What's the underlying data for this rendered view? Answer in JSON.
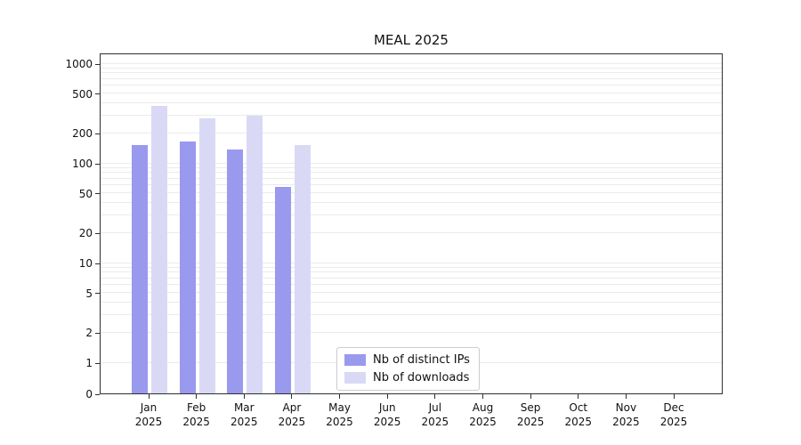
{
  "chart_data": {
    "type": "bar",
    "title": "MEAL 2025",
    "categories": [
      "Jan",
      "Feb",
      "Mar",
      "Apr",
      "May",
      "Jun",
      "Jul",
      "Aug",
      "Sep",
      "Oct",
      "Nov",
      "Dec"
    ],
    "year_label": "2025",
    "series": [
      {
        "name": "Nb of distinct IPs",
        "color": "#9999ee",
        "values": [
          150,
          165,
          135,
          58,
          0,
          0,
          0,
          0,
          0,
          0,
          0,
          0
        ]
      },
      {
        "name": "Nb of downloads",
        "color": "#d9d9f6",
        "values": [
          370,
          280,
          300,
          150,
          0,
          0,
          0,
          0,
          0,
          0,
          0,
          0
        ]
      }
    ],
    "yticks": [
      0,
      1,
      2,
      5,
      10,
      20,
      50,
      100,
      200,
      500,
      1000
    ],
    "ylim": [
      0,
      1000
    ],
    "yscale": "symlog",
    "grid": "horizontal-minor",
    "legend_position": "lower-center-inside"
  }
}
